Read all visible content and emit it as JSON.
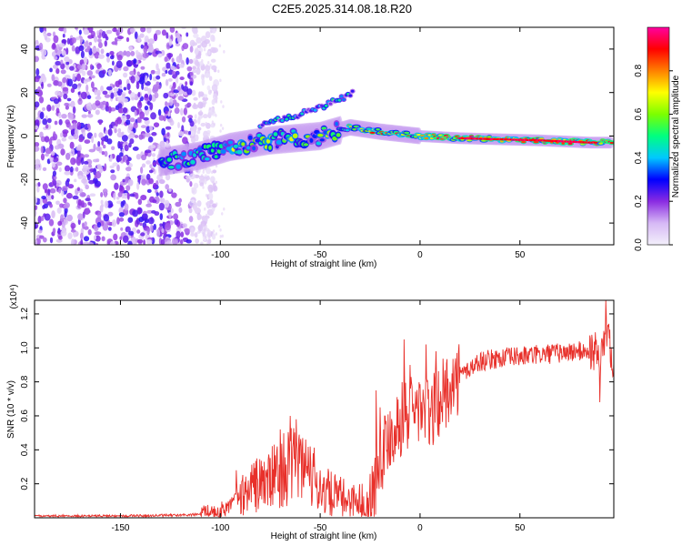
{
  "chart_data": [
    {
      "type": "heatmap",
      "title": "C2E5.2025.314.08.18.R20",
      "xlabel": "Height of straight line (km)",
      "ylabel": "Frequency (Hz)",
      "xlim": [
        -193,
        97
      ],
      "ylim": [
        -50,
        50
      ],
      "xticks": [
        -150,
        -100,
        -50,
        0,
        50
      ],
      "xtick_labels": [
        "-150",
        "-100",
        "-50",
        "0",
        "50"
      ],
      "yticks": [
        -40,
        -20,
        0,
        20,
        40
      ],
      "ytick_labels": [
        "-40",
        "-20",
        "0",
        "20",
        "40"
      ],
      "colorbar": {
        "label": "Normalized spectral amplitude",
        "range": [
          0,
          1
        ],
        "ticks": [
          0.0,
          0.2,
          0.4,
          0.6,
          0.8
        ],
        "tick_labels": [
          "0.0",
          "0.2",
          "0.4",
          "0.6",
          "0.8"
        ],
        "colormap": [
          "#f3f0fb",
          "#d6b8f5",
          "#8a2be2",
          "#0000ff",
          "#00c8ff",
          "#00ff80",
          "#7cff00",
          "#ffff00",
          "#ff8000",
          "#ff0000",
          "#ff00a0"
        ]
      },
      "features": [
        {
          "name": "noise region",
          "x": [
            -193,
            -110
          ],
          "level": 0.2
        },
        {
          "name": "main trace",
          "points": [
            [
              -130,
              -12
            ],
            [
              -110,
              -9
            ],
            [
              -95,
              -5
            ],
            [
              -75,
              -2
            ],
            [
              -50,
              0
            ],
            [
              -35,
              4
            ],
            [
              -20,
              2
            ],
            [
              0,
              0
            ],
            [
              20,
              -1
            ],
            [
              60,
              -2
            ],
            [
              85,
              -3
            ],
            [
              95,
              -3
            ]
          ]
        },
        {
          "name": "upper branch",
          "points": [
            [
              -80,
              5
            ],
            [
              -60,
              10
            ],
            [
              -45,
              15
            ],
            [
              -33,
              20
            ]
          ]
        }
      ]
    },
    {
      "type": "line",
      "xlabel": "Height of straight line (km)",
      "ylabel": "SNR (10 * v/v)",
      "y_exponent": "(x10⁴)",
      "xlim": [
        -193,
        97
      ],
      "ylim": [
        0,
        1.28
      ],
      "xticks": [
        -150,
        -100,
        -50,
        0,
        50
      ],
      "xtick_labels": [
        "-150",
        "-100",
        "-50",
        "0",
        "50"
      ],
      "yticks": [
        0.2,
        0.4,
        0.6,
        0.8,
        1.0,
        1.2
      ],
      "ytick_labels": [
        "0.2",
        "0.4",
        "0.6",
        "0.8",
        "1.0",
        "1.2"
      ],
      "series": [
        {
          "name": "SNR",
          "color": "#e8302a",
          "x": [
            -193,
            -180,
            -160,
            -140,
            -120,
            -110,
            -100,
            -95,
            -90,
            -85,
            -80,
            -75,
            -70,
            -65,
            -60,
            -55,
            -50,
            -45,
            -40,
            -35,
            -30,
            -25,
            -22,
            -20,
            -15,
            -10,
            -5,
            0,
            5,
            10,
            15,
            20,
            25,
            30,
            40,
            50,
            60,
            70,
            80,
            85,
            90,
            92,
            94,
            96,
            97
          ],
          "values": [
            0.01,
            0.01,
            0.01,
            0.012,
            0.015,
            0.02,
            0.04,
            0.08,
            0.12,
            0.18,
            0.2,
            0.22,
            0.28,
            0.3,
            0.32,
            0.26,
            0.18,
            0.14,
            0.12,
            0.1,
            0.1,
            0.08,
            0.22,
            0.35,
            0.5,
            0.58,
            0.62,
            0.65,
            0.6,
            0.7,
            0.76,
            0.84,
            0.88,
            0.92,
            0.94,
            0.95,
            0.96,
            0.97,
            0.98,
            0.98,
            0.97,
            1.0,
            1.15,
            0.95,
            0.94
          ]
        }
      ],
      "spikes": [
        {
          "x": -92,
          "y": 0.28
        },
        {
          "x": -70,
          "y": 0.52
        },
        {
          "x": -65,
          "y": 0.6
        },
        {
          "x": -62,
          "y": 0.58
        },
        {
          "x": -55,
          "y": 0.42
        },
        {
          "x": -22,
          "y": 0.75
        },
        {
          "x": -20,
          "y": 0.65
        },
        {
          "x": -8,
          "y": 1.05
        },
        {
          "x": -5,
          "y": 0.9
        },
        {
          "x": 3,
          "y": 1.02
        },
        {
          "x": 8,
          "y": 0.98
        },
        {
          "x": 15,
          "y": 0.8
        },
        {
          "x": 90,
          "y": 0.68
        },
        {
          "x": 93,
          "y": 1.28
        }
      ]
    }
  ]
}
